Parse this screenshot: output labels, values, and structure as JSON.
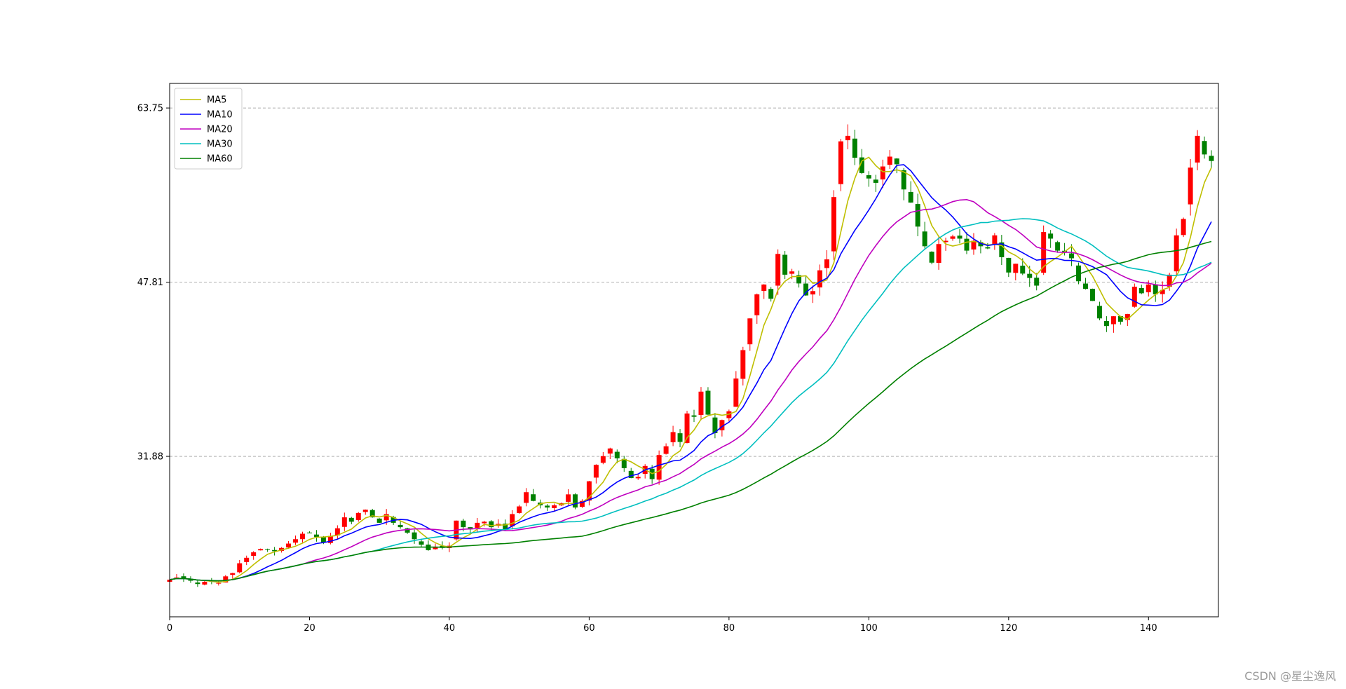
{
  "chart_data": {
    "type": "candlestick",
    "x_ticks": [
      0,
      20,
      40,
      60,
      80,
      100,
      120,
      140
    ],
    "y_ticks": [
      31.88,
      47.81,
      63.75
    ],
    "xlim": [
      0,
      150
    ],
    "ylim": [
      17.2,
      66
    ],
    "grid": "horizontal-dashed",
    "legend_position": "top-left",
    "colors": {
      "up": "#ff0000",
      "down": "#008000"
    },
    "series_styles": [
      {
        "name": "MA5",
        "color": "#bfbf00",
        "window": 5
      },
      {
        "name": "MA10",
        "color": "#0000ff",
        "window": 10
      },
      {
        "name": "MA20",
        "color": "#bf00bf",
        "window": 20
      },
      {
        "name": "MA30",
        "color": "#00bfbf",
        "window": 30
      },
      {
        "name": "MA60",
        "color": "#008000",
        "window": 60
      }
    ],
    "close": [
      20.6,
      20.8,
      20.7,
      20.5,
      20.2,
      20.4,
      20.4,
      20.3,
      20.9,
      21.2,
      22.1,
      22.6,
      23.1,
      23.4,
      23.4,
      23.2,
      23.5,
      23.9,
      24.3,
      24.8,
      24.9,
      24.5,
      24.0,
      24.6,
      25.3,
      26.3,
      25.9,
      26.7,
      27.0,
      26.3,
      25.8,
      26.6,
      25.8,
      25.4,
      24.9,
      24.3,
      23.8,
      23.3,
      23.6,
      23.5,
      23.7,
      26.0,
      25.4,
      25.2,
      25.8,
      25.9,
      25.4,
      25.7,
      25.2,
      26.6,
      27.3,
      28.6,
      27.8,
      27.4,
      27.2,
      27.4,
      27.6,
      28.4,
      27.2,
      27.8,
      29.6,
      31.1,
      31.9,
      32.6,
      31.7,
      30.8,
      29.9,
      30.0,
      31.0,
      29.8,
      32.0,
      32.8,
      34.1,
      33.2,
      35.8,
      35.5,
      37.8,
      35.7,
      34.0,
      35.2,
      36.0,
      39.0,
      41.6,
      44.5,
      46.7,
      47.6,
      46.3,
      50.4,
      48.5,
      48.8,
      47.7,
      46.6,
      47.0,
      48.9,
      49.9,
      55.6,
      60.7,
      61.2,
      59.2,
      57.8,
      57.3,
      56.9,
      58.4,
      59.3,
      58.6,
      56.3,
      55.1,
      52.9,
      51.1,
      49.6,
      51.3,
      51.6,
      52.0,
      51.8,
      50.7,
      51.6,
      51.1,
      50.9,
      52.1,
      50.1,
      48.7,
      49.5,
      48.6,
      48.2,
      47.5,
      52.4,
      51.8,
      50.7,
      50.6,
      50.0,
      47.9,
      47.2,
      46.1,
      44.5,
      43.8,
      44.7,
      44.2,
      44.9,
      47.4,
      46.8,
      47.6,
      46.7,
      47.1,
      48.5,
      52.1,
      53.6,
      58.3,
      61.2,
      59.5,
      58.9
    ]
  },
  "legend": [
    "MA5",
    "MA10",
    "MA20",
    "MA30",
    "MA60"
  ],
  "watermark": "CSDN @星尘逸风"
}
